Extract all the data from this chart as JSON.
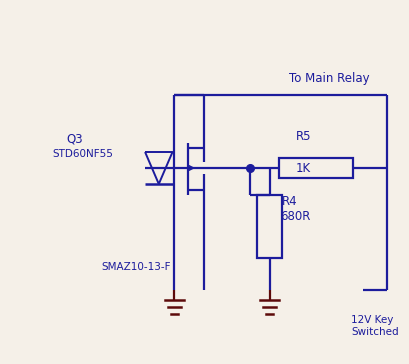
{
  "bg_color": "#f5f0e8",
  "line_color": "#1c1c9c",
  "dark_ground": "#8b0000",
  "title": "To Main Relay",
  "label_q3": "Q3",
  "label_std": "STD60NF55",
  "label_smaz": "SMAZ10-13-F",
  "label_r5": "R5",
  "label_1k": "1K",
  "label_r4": "R4",
  "label_680r": "680R",
  "label_12v": "12V Key\nSwitched",
  "lw": 1.6,
  "fs": 8.5
}
